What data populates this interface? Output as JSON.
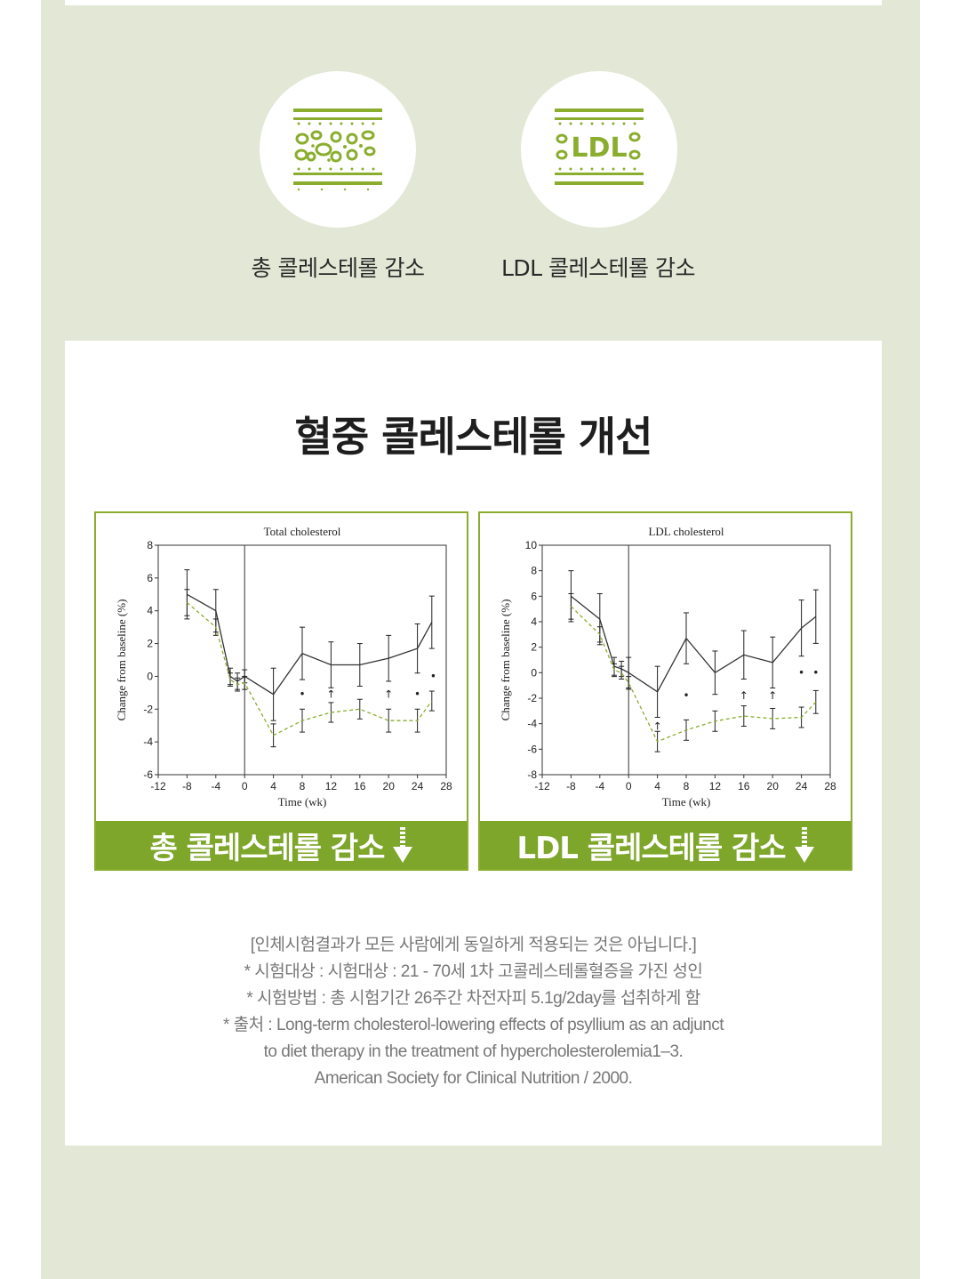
{
  "icons": [
    {
      "name": "total-cholesterol",
      "label": "총 콜레스테롤 감소"
    },
    {
      "name": "ldl-cholesterol",
      "label": "LDL 콜레스테롤 감소",
      "badge_text": "LDL"
    }
  ],
  "section_title": "혈중 콜레스테롤 개선",
  "colors": {
    "accent": "#7da62a",
    "background": "#e3e8d6",
    "treatment_line": "#8aad2e",
    "control_line": "#333333"
  },
  "chart_data": [
    {
      "type": "line",
      "title": "Total cholesterol",
      "xlabel": "Time (wk)",
      "ylabel": "Change from baseline (%)",
      "xlim": [
        -12,
        28
      ],
      "ylim": [
        -6,
        8
      ],
      "xticks": [
        -12,
        -8,
        -4,
        0,
        4,
        8,
        12,
        16,
        20,
        24,
        28
      ],
      "yticks": [
        -6,
        -4,
        -2,
        0,
        2,
        4,
        6,
        8
      ],
      "banner": "총 콜레스테롤 감소",
      "series": [
        {
          "style": "solid",
          "x": [
            -8,
            -4,
            -2,
            -1,
            0,
            4,
            8,
            12,
            16,
            20,
            24,
            26
          ],
          "y": [
            5.0,
            4.0,
            0.0,
            -0.3,
            0.0,
            -1.1,
            1.4,
            0.7,
            0.7,
            1.1,
            1.7,
            3.3
          ],
          "err": [
            1.5,
            1.3,
            0.5,
            0.5,
            0.4,
            1.6,
            1.6,
            1.4,
            1.3,
            1.4,
            1.5,
            1.6
          ]
        },
        {
          "style": "dashed",
          "x": [
            -8,
            -4,
            -2,
            -1,
            0,
            4,
            8,
            12,
            16,
            20,
            24,
            26
          ],
          "y": [
            4.5,
            3.0,
            -0.2,
            -0.5,
            -0.4,
            -3.6,
            -2.7,
            -2.2,
            -2.0,
            -2.7,
            -2.7,
            -1.5
          ],
          "err": [
            0.8,
            0.5,
            0.4,
            0.4,
            0.4,
            0.7,
            0.7,
            0.6,
            0.6,
            0.7,
            0.7,
            0.6
          ]
        }
      ],
      "markers": [
        {
          "x": 8,
          "y": -1.1,
          "symbol": "•"
        },
        {
          "x": 12,
          "y": -1.1,
          "symbol": "↑"
        },
        {
          "x": 20,
          "y": -1.1,
          "symbol": "↑"
        },
        {
          "x": 24,
          "y": -1.1,
          "symbol": "•"
        },
        {
          "x": 26.2,
          "y": 0.0,
          "symbol": "•"
        }
      ]
    },
    {
      "type": "line",
      "title": "LDL cholesterol",
      "xlabel": "Time (wk)",
      "ylabel": "Change from baseline (%)",
      "xlim": [
        -12,
        28
      ],
      "ylim": [
        -8,
        10
      ],
      "xticks": [
        -12,
        -8,
        -4,
        0,
        4,
        8,
        12,
        16,
        20,
        24,
        28
      ],
      "yticks": [
        -8,
        -6,
        -4,
        -2,
        0,
        2,
        4,
        6,
        8,
        10
      ],
      "banner": "LDL 콜레스테롤 감소",
      "series": [
        {
          "style": "solid",
          "x": [
            -8,
            -4,
            -2,
            -1,
            0,
            4,
            8,
            12,
            16,
            20,
            24,
            26
          ],
          "y": [
            6.0,
            4.2,
            0.5,
            0.3,
            0.0,
            -1.5,
            2.7,
            0.0,
            1.4,
            0.8,
            3.5,
            4.4
          ],
          "err": [
            2.0,
            2.0,
            0.7,
            0.6,
            1.2,
            2.0,
            2.0,
            1.7,
            1.9,
            2.0,
            2.2,
            2.1
          ]
        },
        {
          "style": "dashed",
          "x": [
            -8,
            -4,
            -2,
            -1,
            0,
            4,
            8,
            12,
            16,
            20,
            24,
            26
          ],
          "y": [
            5.2,
            3.0,
            0.2,
            0.0,
            -0.8,
            -5.4,
            -4.5,
            -3.8,
            -3.4,
            -3.6,
            -3.5,
            -2.3
          ],
          "err": [
            1.0,
            0.6,
            0.5,
            0.5,
            0.5,
            0.8,
            0.8,
            0.8,
            0.8,
            0.8,
            0.8,
            0.9
          ]
        }
      ],
      "markers": [
        {
          "x": 4,
          "y": -4.2,
          "symbol": "↑"
        },
        {
          "x": 8,
          "y": -1.8,
          "symbol": "•"
        },
        {
          "x": 16,
          "y": -1.8,
          "symbol": "↑"
        },
        {
          "x": 20,
          "y": -1.8,
          "symbol": "↑"
        },
        {
          "x": 24,
          "y": 0.0,
          "symbol": "•"
        },
        {
          "x": 26,
          "y": 0.0,
          "symbol": "•"
        }
      ]
    }
  ],
  "notes": [
    "[인체시험결과가 모든 사람에게 동일하게 적용되는 것은 아닙니다.]",
    "* 시험대상 : 시험대상 : 21 - 70세 1차 고콜레스테롤혈증을 가진 성인",
    "* 시험방법 : 총 시험기간 26주간 차전자피 5.1g/2day를 섭취하게 함",
    "* 출처 : Long-term cholesterol-lowering effects of psyllium as an adjunct",
    "to diet therapy in the treatment of hypercholesterolemia1–3.",
    "American Society for Clinical Nutrition / 2000."
  ]
}
